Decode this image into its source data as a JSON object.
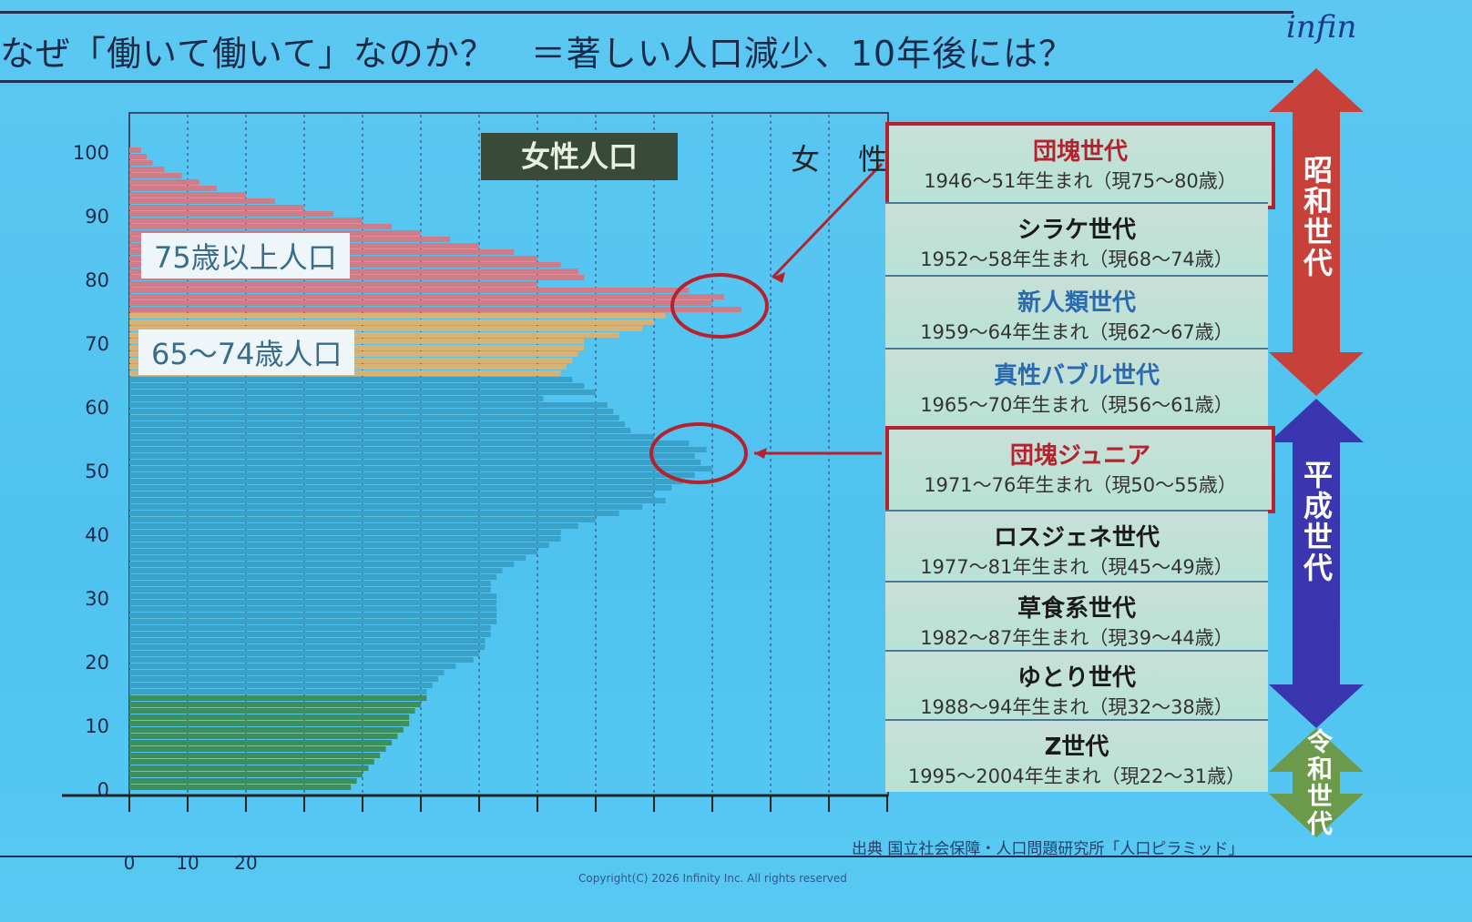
{
  "slide": {
    "title": "なぜ「働いて働いて」なのか？　＝著しい人口減少、10年後には？",
    "logo": "infin",
    "source": "出典 国立社会保障・人口問題研究所「人口ピラミッド」",
    "copyright": "Copyright(C) 2026 Infinity Inc. All rights reserved"
  },
  "chart_data": {
    "type": "bar",
    "orientation": "horizontal",
    "title": "女性人口",
    "side_label": "女 性",
    "y_ticks": [
      0,
      10,
      20,
      30,
      40,
      50,
      60,
      70,
      80,
      90,
      100
    ],
    "x_ticks": [
      0,
      10,
      20
    ],
    "xlim": [
      0,
      130
    ],
    "ylim": [
      0,
      100
    ],
    "grid": "vertical dashed",
    "ages_start": 0,
    "values": [
      38,
      39,
      40,
      41,
      42,
      43,
      44,
      45,
      46,
      47,
      48,
      48,
      49,
      50,
      51,
      51,
      52,
      53,
      54,
      56,
      59,
      60,
      61,
      61,
      62,
      62,
      63,
      63,
      63,
      63,
      63,
      62,
      62,
      63,
      64,
      66,
      68,
      70,
      72,
      74,
      74,
      77,
      80,
      84,
      88,
      92,
      90,
      93,
      95,
      97,
      100,
      98,
      97,
      99,
      96,
      90,
      86,
      85,
      84,
      83,
      82,
      71,
      80,
      78,
      76,
      74,
      75,
      76,
      77,
      78,
      78,
      84,
      88,
      90,
      92,
      105,
      100,
      102,
      96,
      70,
      78,
      77,
      74,
      70,
      66,
      60,
      55,
      50,
      45,
      40,
      35,
      30,
      25,
      20,
      15,
      12,
      9,
      6,
      4,
      3,
      2
    ],
    "groups": [
      {
        "label": "",
        "from": 0,
        "to": 14,
        "color": "#3d8f5e"
      },
      {
        "label": "",
        "from": 15,
        "to": 64,
        "color": "#3aa2c9"
      },
      {
        "label": "65〜74歳人口",
        "from": 65,
        "to": 74,
        "color": "#d8b274"
      },
      {
        "label": "75歳以上人口",
        "from": 75,
        "to": 100,
        "color": "#cf7c88"
      }
    ],
    "highlights": [
      {
        "age": 76,
        "target": "団塊世代"
      },
      {
        "age": 52,
        "target": "団塊ジュニア"
      }
    ]
  },
  "generations": [
    {
      "name": "団塊世代",
      "dates": "1946〜51年生まれ（現75〜80歳）",
      "highlight": true,
      "color": "#b3222e"
    },
    {
      "name": "シラケ世代",
      "dates": "1952〜58年生まれ（現68〜74歳）",
      "color": "#1a1a1a"
    },
    {
      "name": "新人類世代",
      "dates": "1959〜64年生まれ（現62〜67歳）",
      "color": "#2a6ab0"
    },
    {
      "name": "真性バブル世代",
      "dates": "1965〜70年生まれ（現56〜61歳）",
      "color": "#2a6ab0"
    },
    {
      "name": "団塊ジュニア",
      "dates": "1971〜76年生まれ（現50〜55歳）",
      "highlight": true,
      "color": "#b3222e"
    },
    {
      "name": "ロスジェネ世代",
      "dates": "1977〜81年生まれ（現45〜49歳）",
      "color": "#1a1a1a"
    },
    {
      "name": "草食系世代",
      "dates": "1982〜87年生まれ（現39〜44歳）",
      "color": "#1a1a1a"
    },
    {
      "name": "ゆとり世代",
      "dates": "1988〜94年生まれ（現32〜38歳）",
      "color": "#1a1a1a"
    },
    {
      "name": "Z世代",
      "dates": "1995〜2004年生まれ（現22〜31歳）",
      "color": "#1a1a1a"
    }
  ],
  "eras": [
    {
      "label": "昭和世代",
      "color": "#c8403a"
    },
    {
      "label": "平成世代",
      "color": "#3a36b0"
    },
    {
      "label": "令和世代",
      "color": "#6a9a4a"
    }
  ]
}
